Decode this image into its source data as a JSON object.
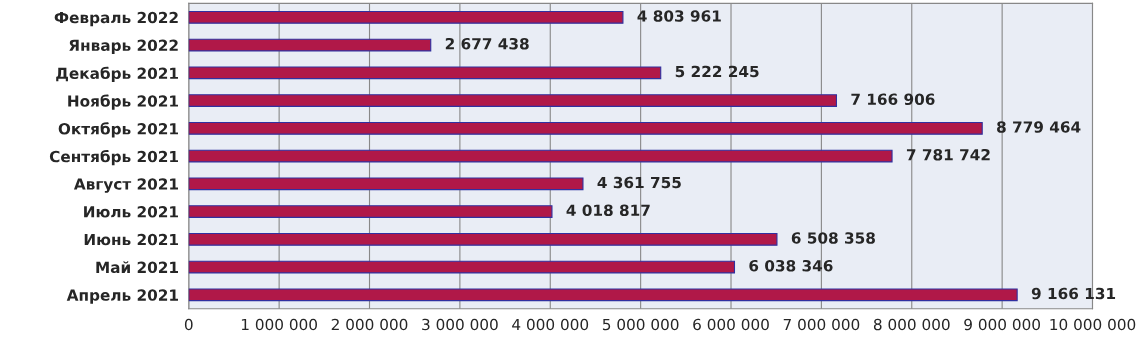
{
  "chart_data": {
    "type": "bar",
    "orientation": "horizontal",
    "categories": [
      "Февраль 2022",
      "Январь 2022",
      "Декабрь 2021",
      "Ноябрь 2021",
      "Октябрь 2021",
      "Сентябрь 2021",
      "Август 2021",
      "Июль 2021",
      "Июнь 2021",
      "Май 2021",
      "Апрель 2021"
    ],
    "values": [
      4803961,
      2677438,
      5222245,
      7166906,
      8779464,
      7781742,
      4361755,
      4018817,
      6508358,
      6038346,
      9166131
    ],
    "value_labels": [
      "4 803 961",
      "2 677 438",
      "5 222 245",
      "7 166 906",
      "8 779 464",
      "7 781 742",
      "4 361 755",
      "4 018 817",
      "6 508 358",
      "6 038 346",
      "9 166 131"
    ],
    "color": "#b01848",
    "xlim": [
      0,
      10000000
    ],
    "xticks": [
      0,
      {
        "value": 1000000,
        "label": "1 000 000"
      },
      {
        "value": 2000000,
        "label": "2 000 000"
      },
      {
        "value": 3000000,
        "label": "3 000 000"
      },
      {
        "value": 4000000,
        "label": "4 000 000"
      },
      {
        "value": 5000000,
        "label": "5 000 000"
      },
      {
        "value": 6000000,
        "label": "6 000 000"
      },
      {
        "value": 7000000,
        "label": "7 000 000"
      },
      {
        "value": 8000000,
        "label": "8 000 000"
      },
      {
        "value": 9000000,
        "label": "9 000 000"
      },
      {
        "value": 10000000,
        "label": "10 000 000"
      }
    ],
    "grid": "x",
    "legend": false
  }
}
